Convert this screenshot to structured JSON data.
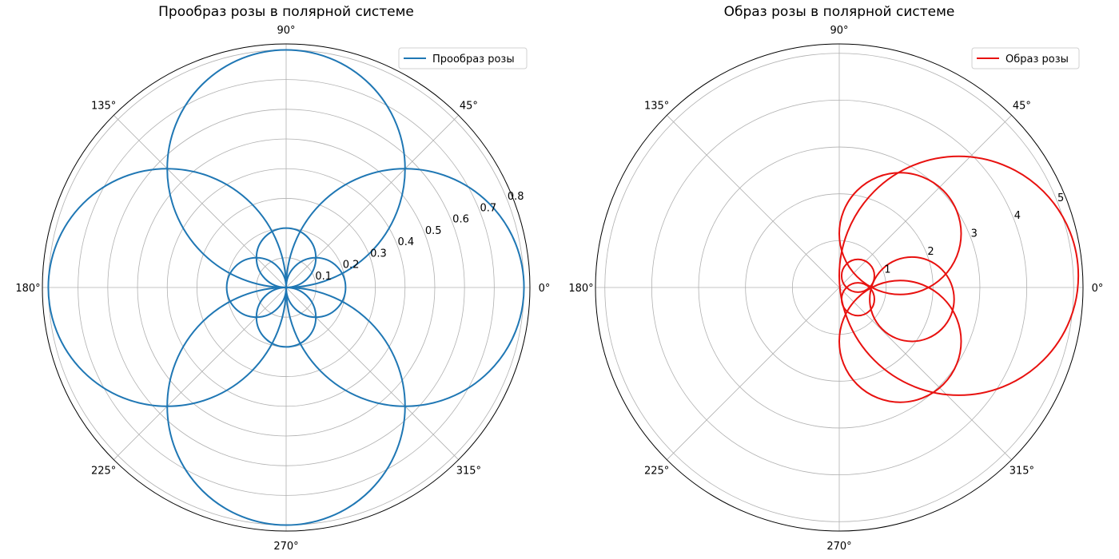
{
  "chart_data": [
    {
      "type": "line",
      "projection": "polar",
      "title": "Прообраз розы в полярной системе",
      "angle_ticks": [
        "0°",
        "45°",
        "90°",
        "135°",
        "180°",
        "225°",
        "270°",
        "315°"
      ],
      "radial_ticks": [
        "0.1",
        "0.2",
        "0.3",
        "0.4",
        "0.5",
        "0.6",
        "0.7",
        "0.8"
      ],
      "radial_tick_values": [
        0.1,
        0.2,
        0.3,
        0.4,
        0.5,
        0.6,
        0.7,
        0.8
      ],
      "rlim": [
        0,
        0.82
      ],
      "grid": true,
      "legend_position": "top-right",
      "series": [
        {
          "name": "Прообраз розы",
          "color": "#1f77b4",
          "curves": [
            {
              "kind": "circle",
              "cx": 0,
              "cy": 0.4,
              "r": 0.4
            },
            {
              "kind": "circle",
              "cx": 0.4,
              "cy": 0,
              "r": 0.4
            },
            {
              "kind": "circle",
              "cx": 0,
              "cy": -0.4,
              "r": 0.4
            },
            {
              "kind": "circle",
              "cx": -0.4,
              "cy": 0,
              "r": 0.4
            },
            {
              "kind": "circle",
              "cx": 0,
              "cy": 0.1,
              "r": 0.1
            },
            {
              "kind": "circle",
              "cx": 0,
              "cy": -0.1,
              "r": 0.1
            },
            {
              "kind": "circle",
              "cx": 0.1,
              "cy": 0,
              "r": 0.1
            },
            {
              "kind": "circle",
              "cx": -0.1,
              "cy": 0,
              "r": 0.1
            }
          ]
        }
      ]
    },
    {
      "type": "line",
      "projection": "polar",
      "title": "Образ розы в полярной системе",
      "angle_ticks": [
        "0°",
        "45°",
        "90°",
        "135°",
        "180°",
        "225°",
        "270°",
        "315°"
      ],
      "radial_ticks": [
        "1",
        "2",
        "3",
        "4",
        "5"
      ],
      "radial_tick_values": [
        1,
        2,
        3,
        4,
        5
      ],
      "rlim": [
        0,
        5.2
      ],
      "grid": true,
      "legend_position": "top-right",
      "series": [
        {
          "name": "Образ розы",
          "color": "#e8110f",
          "curves": [
            {
              "kind": "circle",
              "cx": 2.55,
              "cy": 0.25,
              "r": 2.55
            },
            {
              "kind": "circle",
              "cx": 1.3,
              "cy": 1.15,
              "r": 1.3
            },
            {
              "kind": "circle",
              "cx": 1.3,
              "cy": -1.15,
              "r": 1.3
            },
            {
              "kind": "circle",
              "cx": 1.55,
              "cy": -0.25,
              "r": 0.9
            },
            {
              "kind": "circle",
              "cx": 0.4,
              "cy": 0.25,
              "r": 0.35
            },
            {
              "kind": "circle",
              "cx": 0.4,
              "cy": -0.25,
              "r": 0.35
            }
          ]
        }
      ]
    }
  ]
}
